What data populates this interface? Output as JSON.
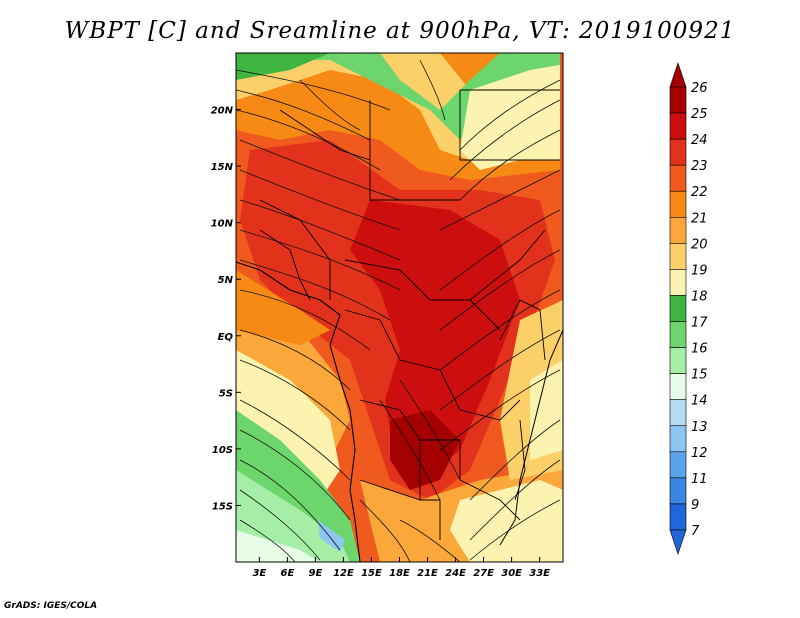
{
  "title": "WBPT [C] and Sreamline at 900hPa, VT: 2019100921",
  "footer": "GrADS: IGES/COLA",
  "map": {
    "lon_labels": [
      "3E",
      "6E",
      "9E",
      "12E",
      "15E",
      "18E",
      "21E",
      "24E",
      "27E",
      "30E",
      "33E"
    ],
    "lon_values": [
      3,
      6,
      9,
      12,
      15,
      18,
      21,
      24,
      27,
      30,
      33
    ],
    "lon_range": [
      0.5,
      35.5
    ],
    "lat_labels": [
      "20N",
      "15N",
      "10N",
      "5N",
      "EQ",
      "5S",
      "10S",
      "15S"
    ],
    "lat_values": [
      20,
      15,
      10,
      5,
      0,
      -5,
      -10,
      -15
    ],
    "lat_range": [
      -20,
      25
    ]
  },
  "colorbar": {
    "levels": [
      "26",
      "25",
      "24",
      "23",
      "22",
      "21",
      "20",
      "19",
      "18",
      "17",
      "16",
      "15",
      "14",
      "13",
      "12",
      "11",
      "9",
      "7"
    ],
    "colors": [
      "#a50000",
      "#cd0e0e",
      "#e3321c",
      "#f05a1e",
      "#f78a14",
      "#fba73a",
      "#fcd068",
      "#fdf3b0",
      "#3fb43f",
      "#6cd66c",
      "#a6eea6",
      "#e8fde8",
      "#b5dcf7",
      "#8dc6f3",
      "#5ba3ec",
      "#3b86e4",
      "#1f66d8"
    ],
    "top_color": "#a50000",
    "bottom_color": "#1f66d8"
  }
}
